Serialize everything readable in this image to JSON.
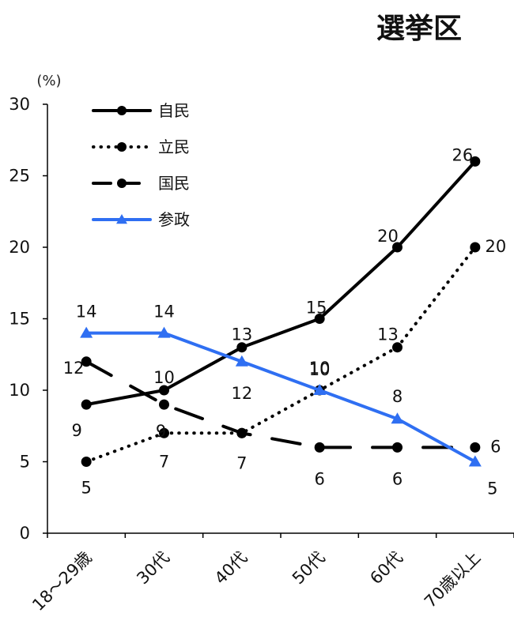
{
  "chart_data": {
    "type": "line",
    "title": "選挙区",
    "y_unit": "(%)",
    "categories": [
      "18～29歳",
      "30代",
      "40代",
      "50代",
      "60代",
      "70歳以上"
    ],
    "ylim": [
      0,
      30
    ],
    "yticks": [
      0,
      5,
      10,
      15,
      20,
      25,
      30
    ],
    "grid": false,
    "legend_position": "top-left",
    "series": [
      {
        "name": "自民",
        "values": [
          9,
          10,
          13,
          15,
          20,
          26
        ],
        "color": "#000000",
        "style": "solid",
        "marker": "circle"
      },
      {
        "name": "立民",
        "values": [
          5,
          7,
          7,
          10,
          13,
          20
        ],
        "color": "#000000",
        "style": "dotted",
        "marker": "circle"
      },
      {
        "name": "国民",
        "values": [
          12,
          9,
          7,
          6,
          6,
          6
        ],
        "color": "#000000",
        "style": "dashed",
        "marker": "circle"
      },
      {
        "name": "参政",
        "values": [
          14,
          14,
          12,
          10,
          8,
          5
        ],
        "color": "#2f6ff2",
        "style": "solid",
        "marker": "triangle"
      }
    ]
  }
}
